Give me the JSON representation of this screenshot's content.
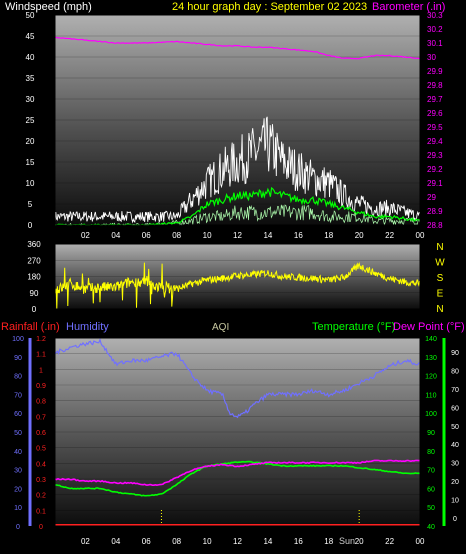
{
  "header": {
    "left_title": "Windspeed (mph)",
    "center_title": "24 hour graph day : September 02 2023",
    "right_title": "Barometer (.in)"
  },
  "colors": {
    "white": "#ffffff",
    "yellow": "#ffff00",
    "magenta": "#ff00ff",
    "green": "#00ff00",
    "red": "#ff2020",
    "blue": "#7070ff",
    "aqi": "#c8c8a0",
    "cyan": "#40ffff"
  },
  "chart_data": [
    {
      "type": "line",
      "id": "wind_baro",
      "ylim": [
        0,
        50
      ],
      "yticks": [
        0,
        5,
        10,
        15,
        20,
        25,
        30,
        35,
        40,
        45,
        50
      ],
      "y2lim": [
        28.8,
        30.3
      ],
      "y2ticks": [
        "28.8",
        "28.9",
        "29",
        "29.1",
        "29.2",
        "29.3",
        "29.4",
        "29.5",
        "29.6",
        "29.7",
        "29.8",
        "29.9",
        "30",
        "30.1",
        "30.2",
        "30.3"
      ],
      "xticks": [
        "02",
        "04",
        "06",
        "08",
        "10",
        "12",
        "14",
        "16",
        "18",
        "20",
        "22",
        "00"
      ],
      "series": [
        {
          "key": "barometer",
          "hours": [
            0,
            2,
            4,
            6,
            8,
            9,
            10,
            11,
            12,
            13,
            14,
            15,
            16,
            17,
            18,
            19,
            20,
            21,
            22,
            23,
            24
          ],
          "values": [
            30.14,
            30.12,
            30.1,
            30.1,
            30.11,
            30.1,
            30.09,
            30.08,
            30.08,
            30.07,
            30.07,
            30.06,
            30.05,
            30.04,
            30.01,
            29.99,
            29.99,
            30.01,
            30.01,
            30,
            29.99
          ]
        },
        {
          "key": "wind_gust",
          "hours": [
            0,
            2,
            4,
            6,
            8,
            9,
            10,
            11,
            12,
            13,
            14,
            15,
            16,
            17,
            18,
            19,
            20,
            21,
            22,
            23,
            24
          ],
          "values": [
            2,
            2,
            2,
            2,
            2,
            6,
            10,
            13,
            15,
            17,
            19,
            15,
            13,
            11,
            10,
            7,
            5,
            4,
            4,
            3,
            2
          ]
        },
        {
          "key": "wind_avg",
          "hours": [
            0,
            2,
            4,
            6,
            8,
            9,
            10,
            11,
            12,
            13,
            14,
            15,
            16,
            17,
            18,
            19,
            20,
            21,
            22,
            23,
            24
          ],
          "values": [
            0,
            0,
            0,
            0,
            0.5,
            2,
            5,
            6,
            7,
            7,
            8,
            7,
            6,
            6,
            5,
            4,
            3,
            2,
            2,
            1.5,
            1
          ]
        },
        {
          "key": "wind_speed",
          "hours": [
            0,
            2,
            4,
            6,
            8,
            9,
            10,
            11,
            12,
            13,
            14,
            15,
            16,
            17,
            18,
            19,
            20,
            21,
            22,
            23,
            24
          ],
          "values": [
            0,
            0,
            0,
            0,
            0.5,
            1,
            2,
            2,
            3,
            3,
            3,
            3,
            3,
            3,
            2,
            2,
            2,
            1,
            1,
            1,
            1
          ]
        }
      ]
    },
    {
      "type": "line",
      "id": "wind_direction",
      "ylim": [
        0,
        360
      ],
      "yticks": [
        "0",
        "90",
        "180",
        "270",
        "360"
      ],
      "right_labels": [
        "N",
        "W",
        "S",
        "E",
        "N"
      ],
      "series": [
        {
          "key": "direction",
          "hours": [
            0,
            1,
            2,
            3,
            4,
            5,
            6,
            7,
            8,
            9,
            10,
            11,
            12,
            13,
            14,
            15,
            16,
            17,
            18,
            19,
            20,
            21,
            22,
            23,
            24
          ],
          "values": [
            100,
            140,
            110,
            120,
            120,
            150,
            140,
            120,
            110,
            140,
            160,
            170,
            185,
            190,
            200,
            180,
            175,
            170,
            160,
            175,
            240,
            200,
            170,
            150,
            140
          ]
        }
      ]
    },
    {
      "type": "line",
      "id": "rain_hum_temp",
      "labels": {
        "rainfall": "Rainfall (.in)",
        "humidity": "Humidity",
        "aqi": "AQI",
        "temperature": "Temperature (°F)",
        "dewpoint": "Dew Point (°F)"
      },
      "y_rain_ticks": [
        "0",
        "0.1",
        "0.2",
        "0.3",
        "0.4",
        "0.5",
        "0.6",
        "0.7",
        "0.8",
        "0.9",
        "1",
        "1.1",
        "1.2"
      ],
      "y_hum_ticks": [
        "0",
        "10",
        "20",
        "30",
        "40",
        "50",
        "60",
        "70",
        "80",
        "90",
        "100"
      ],
      "y_temp_ticks": [
        "40",
        "50",
        "60",
        "70",
        "80",
        "90",
        "100",
        "110",
        "120",
        "130",
        "140"
      ],
      "y_dew_ticks": [
        "0",
        "10",
        "20",
        "30",
        "40",
        "50",
        "60",
        "70",
        "80",
        "90"
      ],
      "xticks": [
        "02",
        "04",
        "06",
        "08",
        "10",
        "12",
        "14",
        "16",
        "18",
        "20",
        "22",
        "00"
      ],
      "day_label": "Sun",
      "series": [
        {
          "key": "humidity",
          "hours": [
            0,
            1,
            2,
            3,
            4,
            5,
            6,
            7,
            8,
            9,
            10,
            11,
            11.5,
            12,
            12.5,
            13,
            14,
            15,
            16,
            17,
            18,
            19,
            20,
            21,
            22,
            23,
            24
          ],
          "values": [
            92,
            95,
            97,
            98,
            86,
            88,
            88,
            90,
            92,
            80,
            72,
            70,
            60,
            58,
            60,
            64,
            70,
            70,
            70,
            72,
            70,
            72,
            76,
            80,
            85,
            88,
            86
          ]
        },
        {
          "key": "temperature",
          "hours": [
            0,
            1,
            2,
            3,
            4,
            5,
            6,
            7,
            8,
            9,
            10,
            11,
            12,
            13,
            14,
            15,
            16,
            17,
            18,
            19,
            20,
            21,
            22,
            23,
            24
          ],
          "values": [
            62,
            60,
            60,
            60,
            58,
            57,
            56,
            57,
            62,
            68,
            72,
            73,
            74,
            74,
            73,
            72,
            72,
            72,
            72,
            72,
            71,
            70,
            69,
            68,
            68
          ]
        },
        {
          "key": "dewpoint",
          "hours": [
            0,
            1,
            2,
            3,
            4,
            5,
            6,
            7,
            8,
            9,
            10,
            11,
            12,
            13,
            14,
            15,
            16,
            17,
            18,
            19,
            20,
            21,
            22,
            23,
            24
          ],
          "values": [
            21,
            21,
            20,
            20,
            19,
            19,
            18,
            18,
            22,
            26,
            28,
            29,
            28,
            29,
            30,
            30,
            30,
            30,
            30,
            30,
            30,
            31,
            31,
            31,
            31
          ]
        },
        {
          "key": "rainfall",
          "hours": [
            0,
            24
          ],
          "values": [
            0,
            0
          ]
        }
      ],
      "markers_hours": [
        7,
        20
      ]
    }
  ]
}
